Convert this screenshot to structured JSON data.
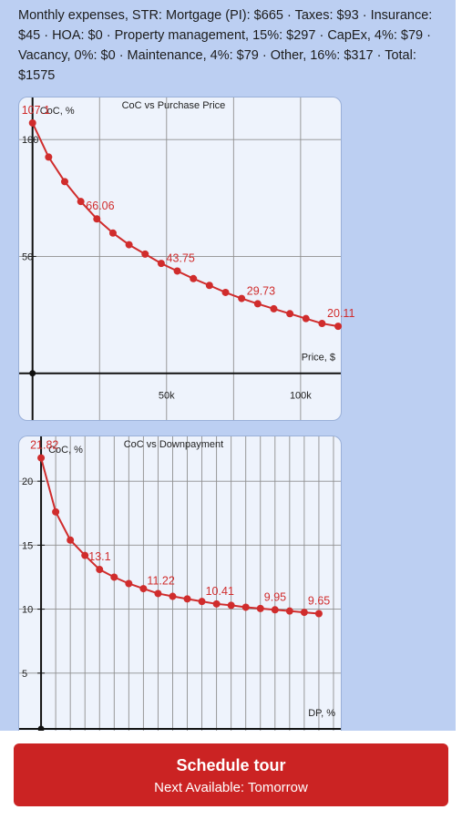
{
  "expenses_text": "Monthly expenses, STR: Mortgage (PI): $665 · Taxes: $93 · Insurance: $45 · HOA: $0 · Property management, 15%: $297 · CapEx, 4%: $79 · Vacancy, 0%: $0 · Maintenance, 4%: $79 · Other, 16%: $317 · Total: $1575",
  "colors": {
    "series": "#d02c2c",
    "panel": "#bccff2",
    "chart_bg": "#eef3fc",
    "cta": "#cb2323"
  },
  "chart_data": [
    {
      "type": "line",
      "title": "CoC vs Purchase Price",
      "ylabel": "CoC, %",
      "xlabel": "Price, $",
      "xlim": [
        -5000,
        115000
      ],
      "ylim": [
        -20,
        118
      ],
      "x_ticks": [
        {
          "v": 50000,
          "label": "50k"
        },
        {
          "v": 100000,
          "label": "100k"
        }
      ],
      "y_ticks": [
        {
          "v": 50,
          "label": "50"
        },
        {
          "v": 100,
          "label": "100"
        }
      ],
      "x_grid": [
        0,
        25000,
        50000,
        75000,
        100000
      ],
      "y_grid": [
        50,
        100
      ],
      "x": [
        0,
        6000,
        12000,
        18000,
        24000,
        30000,
        36000,
        42000,
        48000,
        54000,
        60000,
        66000,
        72000,
        78000,
        84000,
        90000,
        96000,
        102000,
        108000,
        114000
      ],
      "y": [
        107.1,
        92.5,
        82.0,
        73.5,
        66.06,
        60.0,
        55.0,
        51.0,
        47.0,
        43.75,
        40.5,
        37.6,
        34.6,
        32.0,
        29.73,
        27.6,
        25.5,
        23.4,
        21.3,
        20.11
      ],
      "data_labels": [
        {
          "i": 0,
          "text": "107.1"
        },
        {
          "i": 4,
          "text": "66.06"
        },
        {
          "i": 9,
          "text": "43.75"
        },
        {
          "i": 14,
          "text": "29.73"
        },
        {
          "i": 19,
          "text": "20.11"
        }
      ]
    },
    {
      "type": "line",
      "title": "CoC vs Downpayment",
      "ylabel": "CoC, %",
      "xlabel": "DP, %",
      "xlim": [
        -1.5,
        20.5
      ],
      "ylim": [
        0,
        23.5
      ],
      "y_ticks": [
        {
          "v": 5,
          "label": "5"
        },
        {
          "v": 10,
          "label": "10"
        },
        {
          "v": 15,
          "label": "15"
        },
        {
          "v": 20,
          "label": "20"
        }
      ],
      "x_grid": [
        0,
        1,
        2,
        3,
        4,
        5,
        6,
        7,
        8,
        9,
        10,
        11,
        12,
        13,
        14,
        15,
        16,
        17,
        18,
        19,
        20
      ],
      "y_grid": [
        5,
        10,
        15,
        20
      ],
      "x": [
        0,
        1,
        2,
        3,
        4,
        5,
        6,
        7,
        8,
        9,
        10,
        11,
        12,
        13,
        14,
        15,
        16,
        17,
        18,
        19
      ],
      "y": [
        21.82,
        17.6,
        15.4,
        14.2,
        13.1,
        12.5,
        12.0,
        11.6,
        11.22,
        11.0,
        10.8,
        10.6,
        10.41,
        10.3,
        10.15,
        10.05,
        9.95,
        9.85,
        9.75,
        9.65
      ],
      "data_labels": [
        {
          "i": 0,
          "text": "21.82"
        },
        {
          "i": 4,
          "text": "13.1"
        },
        {
          "i": 8,
          "text": "11.22"
        },
        {
          "i": 12,
          "text": "10.41"
        },
        {
          "i": 16,
          "text": "9.95"
        },
        {
          "i": 19,
          "text": "9.65"
        }
      ]
    }
  ],
  "cta": {
    "title": "Schedule tour",
    "subtitle": "Next Available: Tomorrow"
  }
}
